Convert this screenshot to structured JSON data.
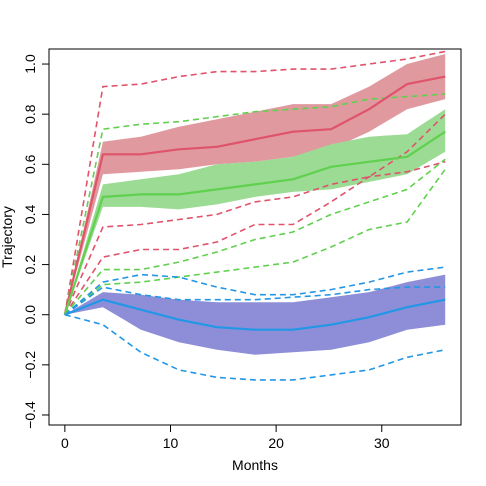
{
  "chart_data": {
    "type": "line",
    "xlabel": "Months",
    "ylabel": "Trajectory",
    "xlim": [
      -1.5,
      37.5
    ],
    "ylim": [
      -0.44,
      1.06
    ],
    "xticks": [
      0,
      10,
      20,
      30
    ],
    "yticks": [
      -0.4,
      -0.2,
      0.0,
      0.2,
      0.4,
      0.6,
      0.8,
      1.0
    ],
    "xtick_labels": [
      "0",
      "10",
      "20",
      "30"
    ],
    "ytick_labels": [
      "−0.4",
      "−0.2",
      "0.0",
      "0.2",
      "0.4",
      "0.6",
      "0.8",
      "1.0"
    ],
    "grid": false,
    "legend": "none",
    "x": [
      0,
      3.6,
      7.2,
      10.8,
      14.4,
      18,
      21.6,
      25.2,
      28.8,
      32.4,
      36
    ],
    "groups": [
      {
        "color": "#DF536B",
        "fill": "#E0999E",
        "mean": [
          0,
          0.64,
          0.64,
          0.66,
          0.67,
          0.7,
          0.73,
          0.74,
          0.82,
          0.92,
          0.95
        ],
        "band_lower": [
          0,
          0.56,
          0.57,
          0.58,
          0.6,
          0.61,
          0.63,
          0.66,
          0.73,
          0.82,
          0.86
        ],
        "band_upper": [
          0,
          0.69,
          0.71,
          0.75,
          0.78,
          0.81,
          0.84,
          0.84,
          0.91,
          1.0,
          1.04
        ],
        "dashed": [
          [
            0,
            0.91,
            0.92,
            0.95,
            0.97,
            0.97,
            0.98,
            0.98,
            1.0,
            1.02,
            1.05
          ],
          [
            0,
            0.35,
            0.36,
            0.38,
            0.4,
            0.45,
            0.47,
            0.52,
            0.55,
            0.65,
            0.8
          ],
          [
            0,
            0.23,
            0.26,
            0.26,
            0.29,
            0.36,
            0.36,
            0.45,
            0.55,
            0.57,
            0.61
          ]
        ]
      },
      {
        "color": "#61D04F",
        "fill": "#9BDB94",
        "mean": [
          0,
          0.47,
          0.48,
          0.48,
          0.5,
          0.52,
          0.54,
          0.59,
          0.61,
          0.63,
          0.73
        ],
        "band_lower": [
          0,
          0.43,
          0.43,
          0.42,
          0.44,
          0.47,
          0.49,
          0.5,
          0.53,
          0.56,
          0.65
        ],
        "band_upper": [
          0,
          0.52,
          0.54,
          0.56,
          0.6,
          0.61,
          0.63,
          0.68,
          0.71,
          0.72,
          0.82
        ],
        "dashed": [
          [
            0,
            0.74,
            0.76,
            0.77,
            0.79,
            0.81,
            0.82,
            0.83,
            0.86,
            0.87,
            0.88
          ],
          [
            0,
            0.18,
            0.18,
            0.21,
            0.25,
            0.3,
            0.33,
            0.4,
            0.45,
            0.5,
            0.62
          ],
          [
            0,
            0.12,
            0.13,
            0.15,
            0.17,
            0.19,
            0.21,
            0.27,
            0.34,
            0.37,
            0.58
          ]
        ]
      },
      {
        "color": "#2297E6",
        "fill": "#8E8ED8",
        "mean": [
          0,
          0.06,
          0.02,
          -0.02,
          -0.05,
          -0.06,
          -0.06,
          -0.04,
          -0.01,
          0.03,
          0.06
        ],
        "band_lower": [
          0,
          0.03,
          -0.06,
          -0.11,
          -0.14,
          -0.16,
          -0.15,
          -0.14,
          -0.11,
          -0.06,
          -0.04
        ],
        "band_upper": [
          0,
          0.09,
          0.08,
          0.06,
          0.05,
          0.05,
          0.05,
          0.07,
          0.09,
          0.13,
          0.16
        ],
        "dashed": [
          [
            0,
            0.13,
            0.16,
            0.15,
            0.11,
            0.08,
            0.08,
            0.1,
            0.13,
            0.17,
            0.19
          ],
          [
            0,
            0.11,
            0.08,
            0.06,
            0.06,
            0.06,
            0.07,
            0.08,
            0.1,
            0.11,
            0.11
          ],
          [
            0,
            -0.04,
            -0.15,
            -0.22,
            -0.25,
            -0.26,
            -0.26,
            -0.24,
            -0.22,
            -0.17,
            -0.14
          ]
        ]
      }
    ]
  }
}
